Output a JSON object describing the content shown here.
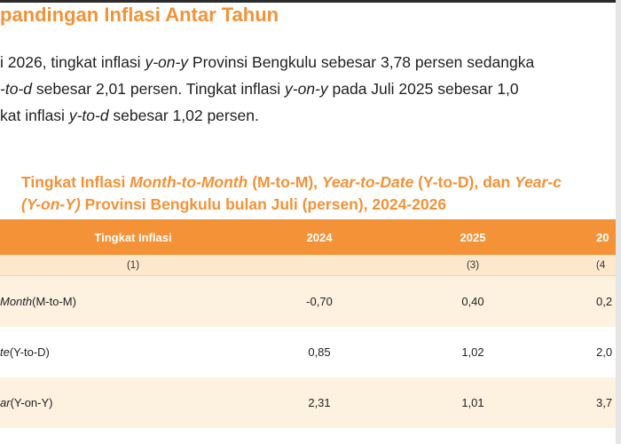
{
  "heading": "pandingan Inflasi Antar Tahun",
  "paragraph": {
    "line1": [
      "i 2026, tingkat inflasi ",
      "y-on-y",
      " Provinsi Bengkulu sebesar 3,78 persen sedangka"
    ],
    "line2": [
      "-to-d",
      " sebesar 2,01 persen. Tingkat inflasi ",
      "y-on-y",
      " pada Juli 2025 sebesar 1,0"
    ],
    "line3": [
      "kat inflasi ",
      "y-to-d",
      " sebesar 1,02 persen."
    ]
  },
  "table_title": {
    "line1": [
      "Tingkat Inflasi ",
      "Month-to-Month",
      " (M-to-M), ",
      "Year-to-Date",
      " (Y-to-D), dan ",
      "Year-c"
    ],
    "line2": [
      "(Y-on-Y)",
      " Provinsi Bengkulu bulan Juli (persen), 2024-2026"
    ]
  },
  "table": {
    "headers": {
      "label": "Tingkat Inflasi",
      "y2024": "2024",
      "y2025": "2025",
      "y2026": "20"
    },
    "subheaders": {
      "label": "(1)",
      "y2024": "",
      "y2025": "(3)",
      "y2026": "(4"
    },
    "rows": [
      {
        "label_italic": "Month",
        "label_rest": " (M-to-M)",
        "y2024": "-0,70",
        "y2025": "0,40",
        "y2026": "0,2"
      },
      {
        "label_italic": "te",
        "label_rest": " (Y-to-D)",
        "y2024": "0,85",
        "y2025": "1,02",
        "y2026": "2,0"
      },
      {
        "label_italic": "ar",
        "label_rest": " (Y-on-Y)",
        "y2024": "2,31",
        "y2025": "1,01",
        "y2026": "3,7"
      }
    ]
  },
  "colors": {
    "accent": "#f39237",
    "row_tint": "#fdf1e0",
    "subheader_tint": "#fde8cd"
  }
}
